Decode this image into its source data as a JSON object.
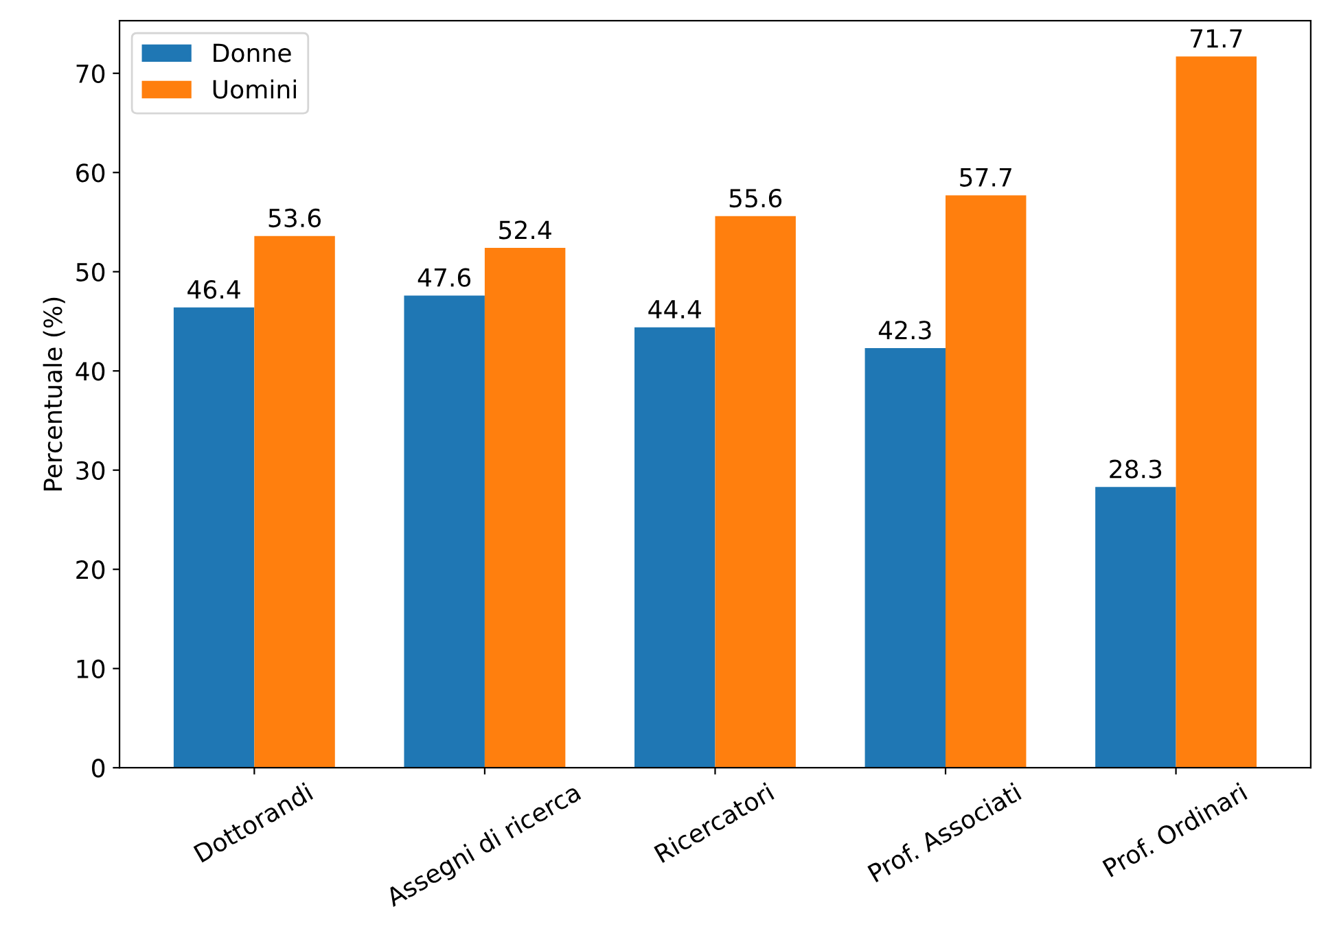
{
  "chart_data": {
    "type": "bar",
    "ylabel": "Percentuale (%)",
    "categories": [
      "Dottorandi",
      "Assegni di ricerca",
      "Ricercatori",
      "Prof. Associati",
      "Prof. Ordinari"
    ],
    "series": [
      {
        "name": "Donne",
        "color": "#1f77b4",
        "values": [
          46.4,
          47.6,
          44.4,
          42.3,
          28.3
        ]
      },
      {
        "name": "Uomini",
        "color": "#ff7f0e",
        "values": [
          53.6,
          52.4,
          55.6,
          57.7,
          71.7
        ]
      }
    ],
    "ylim": [
      0,
      75.3
    ],
    "yticks": [
      0,
      10,
      20,
      30,
      40,
      50,
      60,
      70
    ],
    "data_labels": true,
    "legend": "top left",
    "grid": false
  }
}
